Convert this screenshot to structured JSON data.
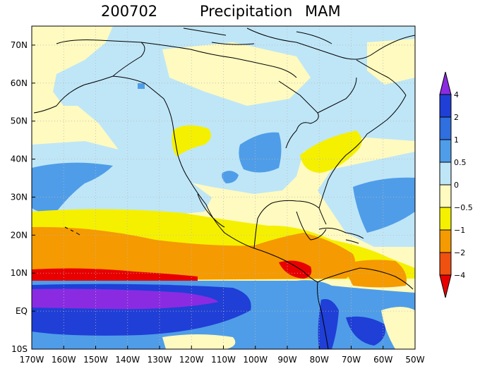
{
  "title": {
    "period": "200702",
    "variable": "Precipitation",
    "season": "MAM"
  },
  "map": {
    "lon_range": [
      -170,
      -50
    ],
    "lat_range": [
      -10,
      75
    ],
    "lat_labels": [
      "70N",
      "60N",
      "50N",
      "40N",
      "30N",
      "20N",
      "10N",
      "EQ",
      "10S"
    ],
    "lat_values": [
      70,
      60,
      50,
      40,
      30,
      20,
      10,
      0,
      -10
    ],
    "lon_labels": [
      "170W",
      "160W",
      "150W",
      "140W",
      "130W",
      "120W",
      "110W",
      "100W",
      "90W",
      "80W",
      "70W",
      "60W",
      "50W"
    ],
    "lon_values": [
      -170,
      -160,
      -150,
      -140,
      -130,
      -120,
      -110,
      -100,
      -90,
      -80,
      -70,
      -60,
      -50
    ],
    "grid": "dotted",
    "coastlines": true
  },
  "colorbar": {
    "labels": [
      "4",
      "2",
      "1",
      "0.5",
      "0",
      "−0.5",
      "−1",
      "−2",
      "−4"
    ],
    "colors": [
      "#8a2be2",
      "#1f3fd6",
      "#2f6fe0",
      "#4f9de8",
      "#bfe6f7",
      "#fffac0",
      "#f5f000",
      "#f59a00",
      "#f05010",
      "#e80000"
    ],
    "placement": "right"
  },
  "colors": {
    "strong_positive": "#6a0dd8",
    "positive": "#1f3fd6",
    "weak_positive": "#bfe6f7",
    "weak_negative": "#fffac0",
    "negative": "#f5f000",
    "strong_negative": "#e80000"
  }
}
